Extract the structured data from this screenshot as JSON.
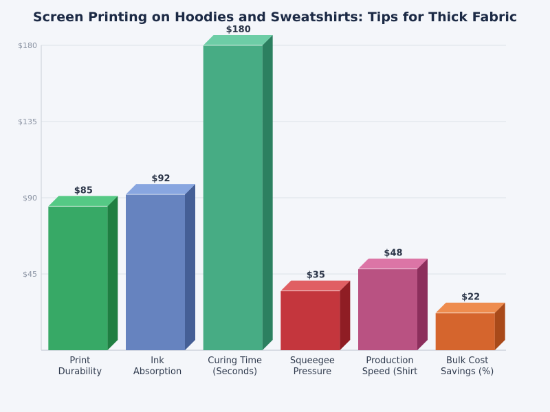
{
  "chart_data": {
    "type": "bar",
    "title": "Screen Printing on Hoodies and Sweatshirts: Tips for Thick Fabric",
    "xlabel": "",
    "ylabel": "",
    "ylim": [
      0,
      180
    ],
    "yticks": [
      45,
      90,
      135,
      180
    ],
    "ytick_labels": [
      "$45",
      "$90",
      "$135",
      "$180"
    ],
    "grid": true,
    "legend": null,
    "categories": [
      [
        "Print",
        "Durability"
      ],
      [
        "Ink",
        "Absorption"
      ],
      [
        "Curing Time",
        "(Seconds)"
      ],
      [
        "Squeegee",
        "Pressure"
      ],
      [
        "Production",
        "Speed (Shirt"
      ],
      [
        "Bulk Cost",
        "Savings (%)"
      ]
    ],
    "values": [
      85,
      92,
      180,
      35,
      48,
      22
    ],
    "value_labels": [
      "$85",
      "$92",
      "$180",
      "$35",
      "$48",
      "$22"
    ],
    "colors": [
      {
        "front": "#37a966",
        "top": "#55c985",
        "side": "#1f7f42"
      },
      {
        "front": "#6683bf",
        "top": "#88a6e0",
        "side": "#455f96"
      },
      {
        "front": "#47ac84",
        "top": "#6dcda6",
        "side": "#2c8060"
      },
      {
        "front": "#c4363d",
        "top": "#e05f63",
        "side": "#8f1d24"
      },
      {
        "front": "#b95282",
        "top": "#dc75a6",
        "side": "#8c2f5c"
      },
      {
        "front": "#d5652d",
        "top": "#ee8c4e",
        "side": "#a94a1a"
      }
    ]
  }
}
